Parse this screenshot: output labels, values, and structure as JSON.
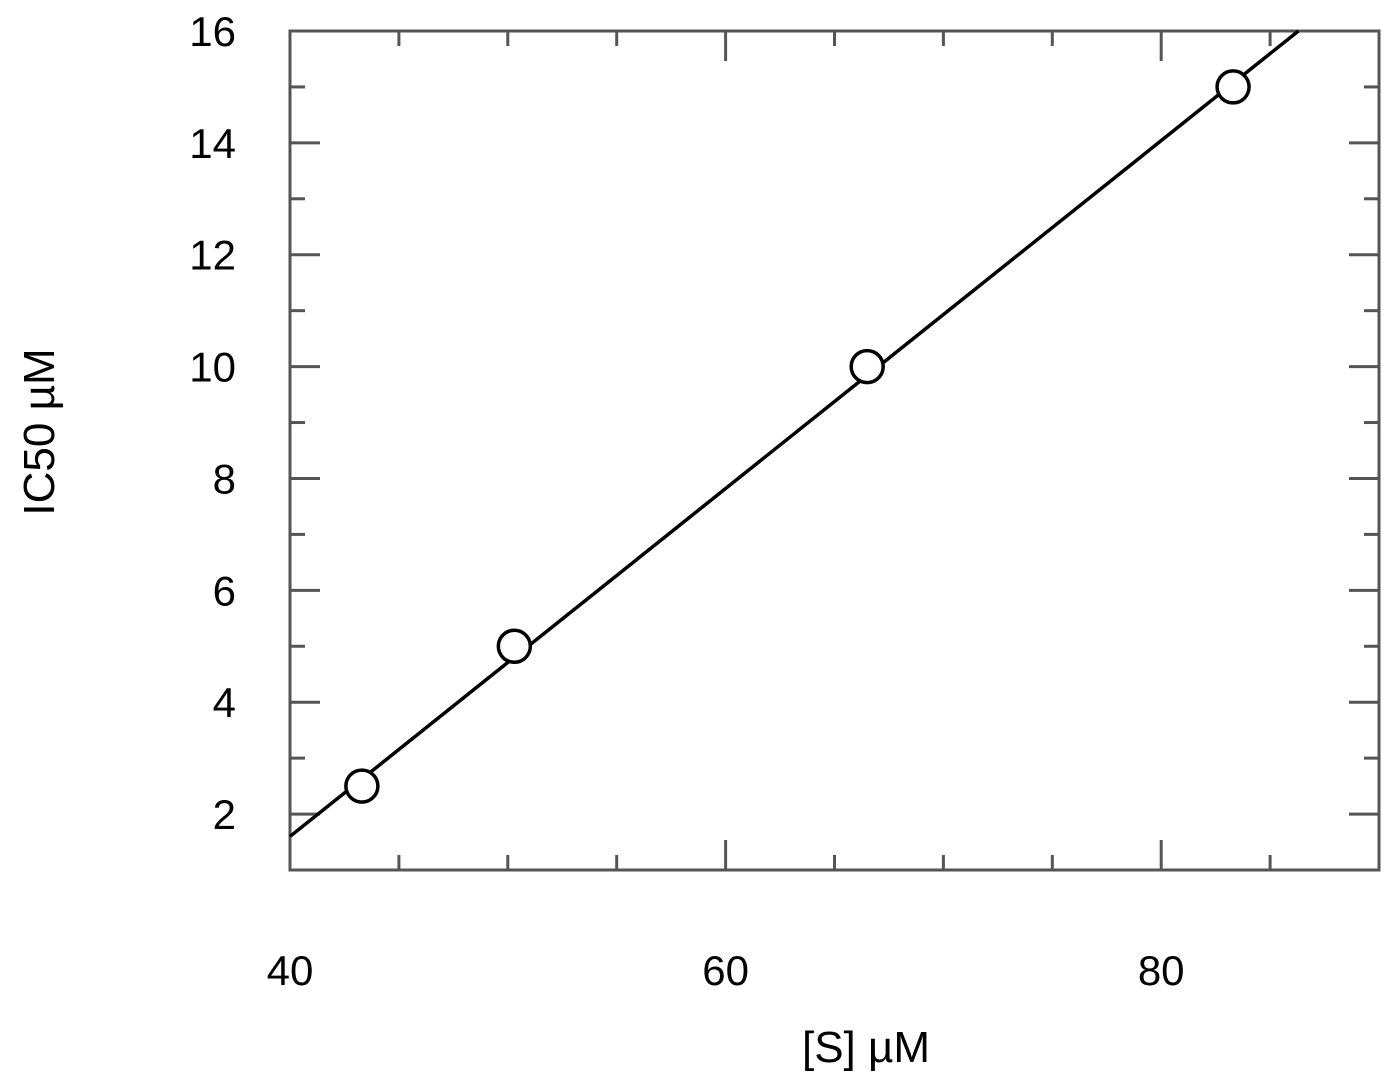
{
  "chart_data": {
    "type": "scatter",
    "title": "",
    "xlabel": "[S] µM",
    "ylabel": "IC50  µM",
    "xlim": [
      40,
      90
    ],
    "ylim": [
      1,
      16
    ],
    "x_major_ticks": [
      40,
      60,
      80
    ],
    "x_minor_step": 5,
    "y_major_ticks": [
      2,
      4,
      6,
      8,
      10,
      12,
      14,
      16
    ],
    "y_minor_step": 1,
    "grid": false,
    "legend": "none",
    "series": [
      {
        "marker": "open-circle",
        "x": [
          43.3,
          50.3,
          66.5,
          83.3
        ],
        "y": [
          2.5,
          5.0,
          10.0,
          15.0
        ]
      }
    ],
    "fit_line": {
      "x": [
        40,
        86.3
      ],
      "y": [
        1.6,
        16.0
      ]
    }
  }
}
